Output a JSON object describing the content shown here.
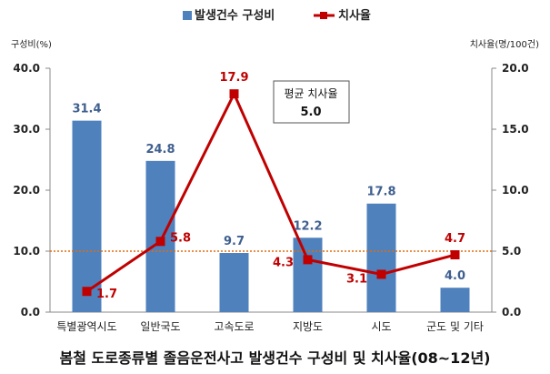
{
  "legend": {
    "bar_label": "발생건수 구성비",
    "line_label": "치사율"
  },
  "axis": {
    "left_title": "구성비(%)",
    "right_title": "치사율(명/100건)"
  },
  "note": {
    "title": "평균 치사율",
    "value": "5.0"
  },
  "caption": "봄철 도로종류별 졸음운전사고 발생건수 구성비 및 치사율(08~12년)",
  "colors": {
    "bar": "#4f81bd",
    "line": "#c00000",
    "avg_line": "#e36c09",
    "bar_label": "#3f5f8f"
  },
  "chart_data": {
    "type": "bar",
    "categories": [
      "특별광역시도",
      "일반국도",
      "고속도로",
      "지방도",
      "시도",
      "군도 및 기타"
    ],
    "series": [
      {
        "name": "발생건수 구성비",
        "type": "bar",
        "axis": "left",
        "values": [
          31.4,
          24.8,
          9.7,
          12.2,
          17.8,
          4.0
        ]
      },
      {
        "name": "치사율",
        "type": "line",
        "axis": "right",
        "values": [
          1.7,
          5.8,
          17.9,
          4.3,
          3.1,
          4.7
        ]
      }
    ],
    "average_rate": 5.0,
    "ylim_left": [
      0,
      40
    ],
    "ylim_right": [
      0,
      20
    ],
    "yticks_left": [
      "0.0",
      "10.0",
      "20.0",
      "30.0",
      "40.0"
    ],
    "yticks_right": [
      "0.0",
      "5.0",
      "10.0",
      "15.0",
      "20.0"
    ],
    "bar_value_labels": [
      "31.4",
      "24.8",
      "9.7",
      "12.2",
      "17.8",
      "4.0"
    ],
    "rate_value_labels": [
      "1.7",
      "5.8",
      "17.9",
      "4.3",
      "3.1",
      "4.7"
    ]
  }
}
